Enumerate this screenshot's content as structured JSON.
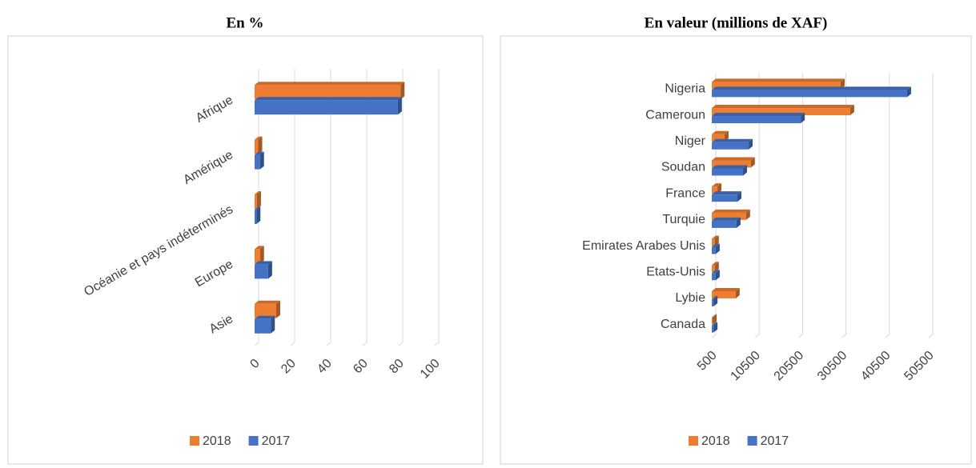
{
  "chart_data": [
    {
      "type": "bar",
      "orientation": "horizontal",
      "title": "En %",
      "categories": [
        "Afrique",
        "Amérique",
        "Océanie et pays indéterminés",
        "Europe",
        "Asie"
      ],
      "series": [
        {
          "name": "2018",
          "color": "#ED7D31",
          "values": [
            81,
            2,
            1.3,
            3,
            12
          ]
        },
        {
          "name": "2017",
          "color": "#4472C4",
          "values": [
            79.5,
            3,
            1,
            7.5,
            9
          ]
        }
      ],
      "xlim": [
        0,
        100
      ],
      "xticks": [
        0,
        20,
        40,
        60,
        80,
        100
      ],
      "grid": true,
      "legend": "bottom"
    },
    {
      "type": "bar",
      "orientation": "horizontal",
      "title": "En valeur (millions de XAF)",
      "categories": [
        "Nigeria",
        "Cameroun",
        "Niger",
        "Soudan",
        "France",
        "Turquie",
        "Emirates Arabes Unis",
        "Etats-Unis",
        "Lybie",
        "Canada"
      ],
      "series": [
        {
          "name": "2018",
          "color": "#ED7D31",
          "values": [
            30200,
            32400,
            3450,
            9500,
            1800,
            8400,
            1200,
            1200,
            6000,
            700
          ]
        },
        {
          "name": "2017",
          "color": "#4472C4",
          "values": [
            45500,
            21000,
            9000,
            7700,
            6400,
            6200,
            1400,
            1400,
            900,
            900
          ]
        }
      ],
      "xlim": [
        500,
        50500
      ],
      "xticks": [
        500,
        10500,
        20500,
        30500,
        40500,
        50500
      ],
      "grid": true,
      "legend": "bottom"
    }
  ]
}
